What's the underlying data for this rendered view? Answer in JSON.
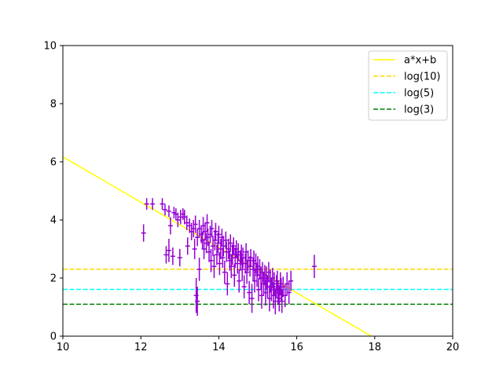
{
  "chart_data": {
    "type": "scatter",
    "title": "",
    "xlabel": "",
    "ylabel": "",
    "xlim": [
      10,
      20
    ],
    "ylim": [
      0,
      10
    ],
    "xticks": [
      "10",
      "12",
      "14",
      "16",
      "18",
      "20"
    ],
    "yticks": [
      "0",
      "2",
      "4",
      "6",
      "8",
      "10"
    ],
    "grid": false,
    "legend_position": "top-right",
    "legend": [
      {
        "label": "a*x+b",
        "color": "#ffff00",
        "style": "solid"
      },
      {
        "label": "log(10)",
        "color": "#ffd700",
        "style": "dashed"
      },
      {
        "label": "log(5)",
        "color": "#00ffff",
        "style": "dashed"
      },
      {
        "label": "log(3)",
        "color": "#008000",
        "style": "dashed"
      }
    ],
    "fit_line": {
      "slope": -0.78,
      "intercept": 13.97,
      "color": "#ffff00"
    },
    "hlines": [
      {
        "y": 2.303,
        "color": "#ffd700"
      },
      {
        "y": 1.609,
        "color": "#00ffff"
      },
      {
        "y": 1.099,
        "color": "#008000"
      }
    ],
    "points_color": "#9400d3",
    "points": [
      [
        12.07,
        3.55,
        0.3
      ],
      [
        12.15,
        4.55,
        0.2
      ],
      [
        12.3,
        4.55,
        0.2
      ],
      [
        12.55,
        4.55,
        0.2
      ],
      [
        12.62,
        4.35,
        0.2
      ],
      [
        12.65,
        2.8,
        0.3
      ],
      [
        12.72,
        2.95,
        0.4
      ],
      [
        12.72,
        4.3,
        0.2
      ],
      [
        12.76,
        3.8,
        0.3
      ],
      [
        12.82,
        2.75,
        0.3
      ],
      [
        12.85,
        4.25,
        0.2
      ],
      [
        12.9,
        4.2,
        0.2
      ],
      [
        12.95,
        4.0,
        0.25
      ],
      [
        13.0,
        2.7,
        0.3
      ],
      [
        13.02,
        4.1,
        0.25
      ],
      [
        13.08,
        4.2,
        0.2
      ],
      [
        13.12,
        4.1,
        0.25
      ],
      [
        13.18,
        3.9,
        0.25
      ],
      [
        13.2,
        3.1,
        0.3
      ],
      [
        13.25,
        3.8,
        0.25
      ],
      [
        13.3,
        3.6,
        0.3
      ],
      [
        13.35,
        3.7,
        0.3
      ],
      [
        13.38,
        3.0,
        0.35
      ],
      [
        13.4,
        3.85,
        0.3
      ],
      [
        13.42,
        1.4,
        0.6
      ],
      [
        13.45,
        1.2,
        0.5
      ],
      [
        13.45,
        3.4,
        0.3
      ],
      [
        13.5,
        2.3,
        0.4
      ],
      [
        13.5,
        3.7,
        0.3
      ],
      [
        13.55,
        3.5,
        0.3
      ],
      [
        13.58,
        3.3,
        0.3
      ],
      [
        13.6,
        3.8,
        0.3
      ],
      [
        13.62,
        3.0,
        0.35
      ],
      [
        13.65,
        3.6,
        0.3
      ],
      [
        13.68,
        3.2,
        0.35
      ],
      [
        13.7,
        3.9,
        0.3
      ],
      [
        13.72,
        3.4,
        0.3
      ],
      [
        13.75,
        2.9,
        0.35
      ],
      [
        13.78,
        3.5,
        0.3
      ],
      [
        13.8,
        2.6,
        0.4
      ],
      [
        13.82,
        3.7,
        0.3
      ],
      [
        13.85,
        3.1,
        0.35
      ],
      [
        13.88,
        2.4,
        0.4
      ],
      [
        13.9,
        3.3,
        0.35
      ],
      [
        13.92,
        3.6,
        0.3
      ],
      [
        13.95,
        2.8,
        0.35
      ],
      [
        13.98,
        3.2,
        0.35
      ],
      [
        14.0,
        3.5,
        0.3
      ],
      [
        14.02,
        2.5,
        0.4
      ],
      [
        14.05,
        3.0,
        0.35
      ],
      [
        14.08,
        3.4,
        0.3
      ],
      [
        14.1,
        2.7,
        0.35
      ],
      [
        14.12,
        3.1,
        0.35
      ],
      [
        14.15,
        2.2,
        0.4
      ],
      [
        14.18,
        3.3,
        0.3
      ],
      [
        14.2,
        2.9,
        0.35
      ],
      [
        14.22,
        1.8,
        0.4
      ],
      [
        14.25,
        3.0,
        0.35
      ],
      [
        14.28,
        2.6,
        0.35
      ],
      [
        14.3,
        3.2,
        0.3
      ],
      [
        14.32,
        2.4,
        0.4
      ],
      [
        14.35,
        2.8,
        0.35
      ],
      [
        14.38,
        3.1,
        0.3
      ],
      [
        14.4,
        2.1,
        0.4
      ],
      [
        14.42,
        2.7,
        0.35
      ],
      [
        14.45,
        3.0,
        0.3
      ],
      [
        14.48,
        2.5,
        0.35
      ],
      [
        14.5,
        2.9,
        0.3
      ],
      [
        14.52,
        1.9,
        0.4
      ],
      [
        14.55,
        2.6,
        0.35
      ],
      [
        14.58,
        2.8,
        0.35
      ],
      [
        14.6,
        2.3,
        0.4
      ],
      [
        14.62,
        2.7,
        0.35
      ],
      [
        14.65,
        1.7,
        0.4
      ],
      [
        14.68,
        2.5,
        0.35
      ],
      [
        14.7,
        2.9,
        0.3
      ],
      [
        14.72,
        2.2,
        0.4
      ],
      [
        14.75,
        2.6,
        0.35
      ],
      [
        14.78,
        1.5,
        0.4
      ],
      [
        14.8,
        2.4,
        0.35
      ],
      [
        14.82,
        2.7,
        0.3
      ],
      [
        14.85,
        1.3,
        0.5
      ],
      [
        14.88,
        2.3,
        0.4
      ],
      [
        14.9,
        2.6,
        0.35
      ],
      [
        14.92,
        1.9,
        0.4
      ],
      [
        14.95,
        2.5,
        0.35
      ],
      [
        14.98,
        2.1,
        0.4
      ],
      [
        15.0,
        2.4,
        0.35
      ],
      [
        15.02,
        1.6,
        0.4
      ],
      [
        15.05,
        2.3,
        0.35
      ],
      [
        15.08,
        2.0,
        0.4
      ],
      [
        15.1,
        1.4,
        0.45
      ],
      [
        15.12,
        2.2,
        0.35
      ],
      [
        15.15,
        1.8,
        0.4
      ],
      [
        15.18,
        2.1,
        0.35
      ],
      [
        15.2,
        1.5,
        0.45
      ],
      [
        15.22,
        2.0,
        0.4
      ],
      [
        15.25,
        1.7,
        0.4
      ],
      [
        15.28,
        2.2,
        0.35
      ],
      [
        15.3,
        1.3,
        0.45
      ],
      [
        15.32,
        1.9,
        0.4
      ],
      [
        15.35,
        1.6,
        0.4
      ],
      [
        15.38,
        2.0,
        0.35
      ],
      [
        15.4,
        1.4,
        0.45
      ],
      [
        15.42,
        1.8,
        0.4
      ],
      [
        15.45,
        1.2,
        0.45
      ],
      [
        15.48,
        1.7,
        0.4
      ],
      [
        15.5,
        1.9,
        0.35
      ],
      [
        15.52,
        1.5,
        0.4
      ],
      [
        15.55,
        1.3,
        0.45
      ],
      [
        15.58,
        1.8,
        0.4
      ],
      [
        15.6,
        1.6,
        0.4
      ],
      [
        15.62,
        1.2,
        0.4
      ],
      [
        15.65,
        1.7,
        0.35
      ],
      [
        15.7,
        1.4,
        0.4
      ],
      [
        15.75,
        1.8,
        0.4
      ],
      [
        15.8,
        1.5,
        0.4
      ],
      [
        15.85,
        1.9,
        0.35
      ],
      [
        16.45,
        2.4,
        0.4
      ]
    ]
  }
}
